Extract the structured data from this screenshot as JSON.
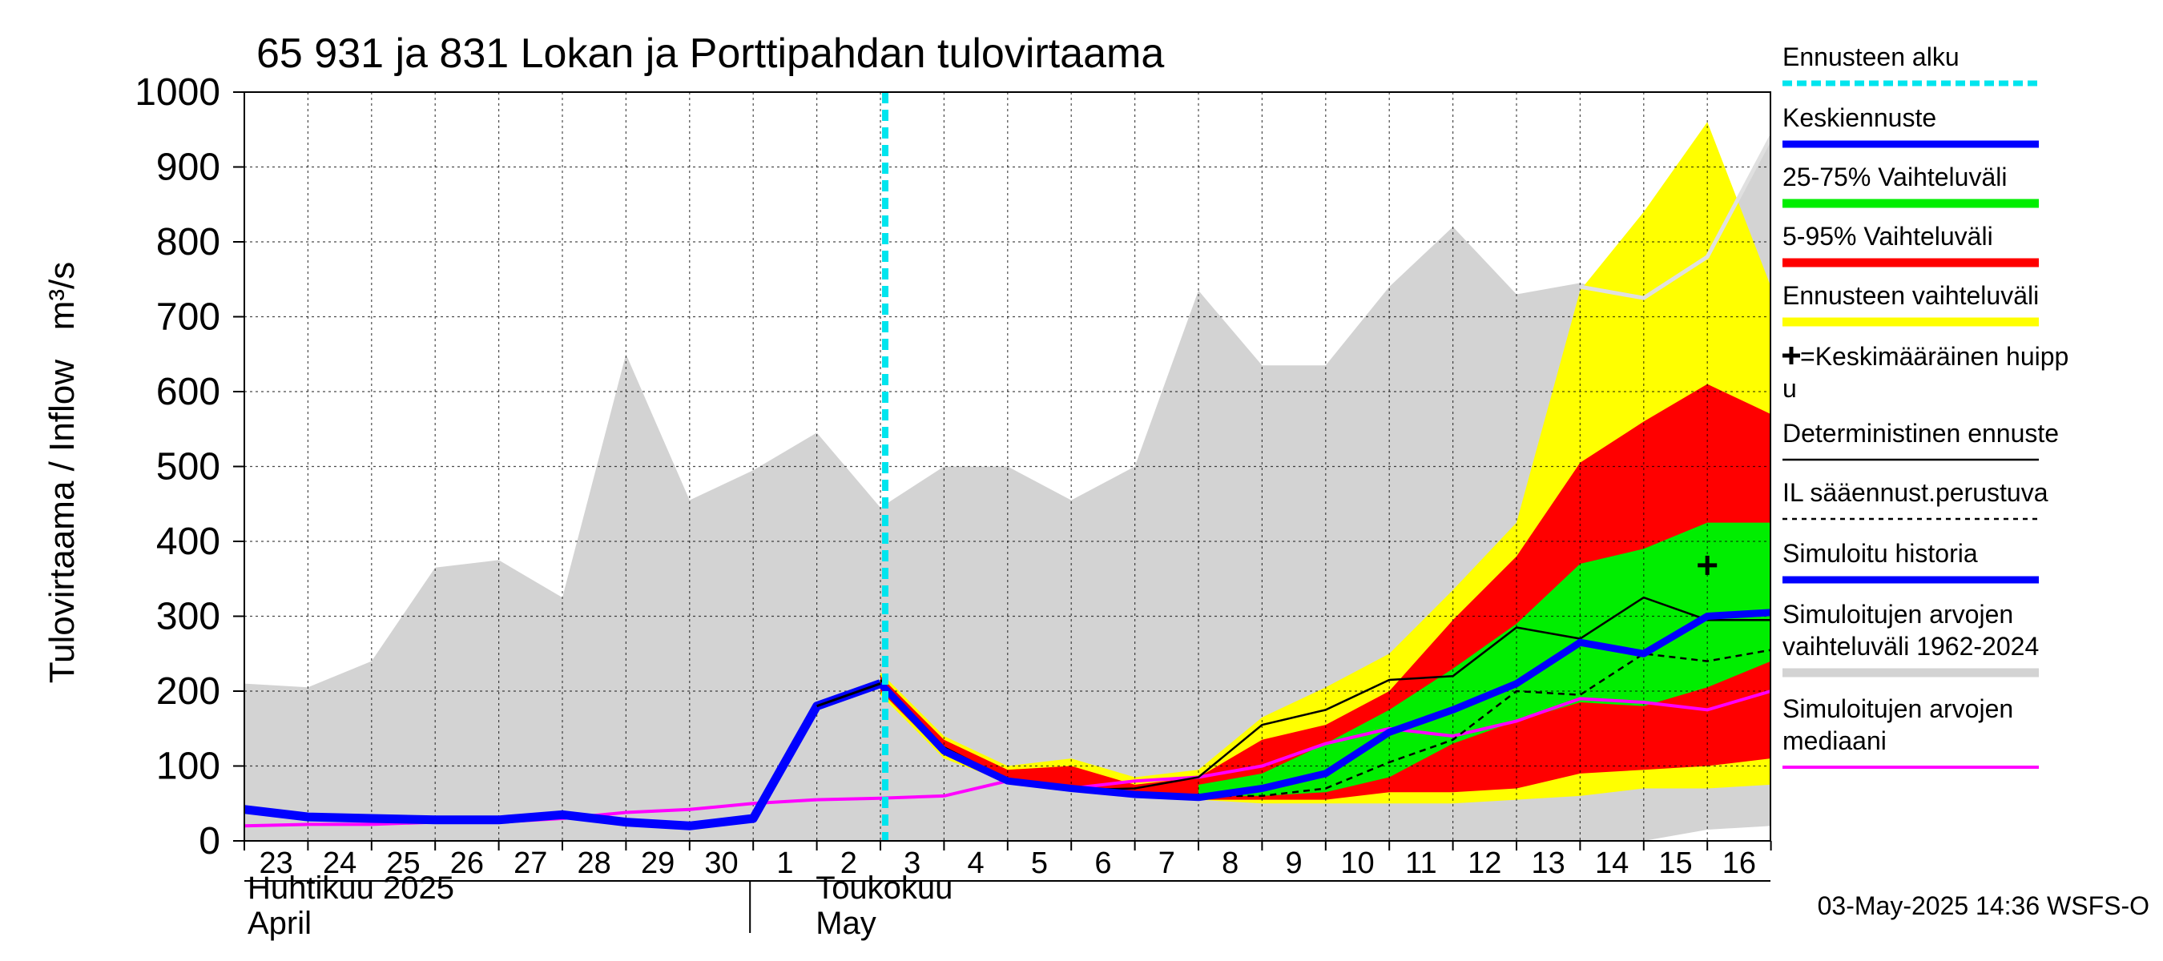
{
  "chart_data": {
    "type": "area",
    "title": "65 931 ja 831 Lokan ja Porttipahdan tulovirtaama",
    "ylabel": "Tulovirtaama / Inflow   m³/s",
    "ylim": [
      0,
      1000
    ],
    "yticks": [
      "0",
      "100",
      "200",
      "300",
      "400",
      "500",
      "600",
      "700",
      "800",
      "900",
      "1000"
    ],
    "x_day_labels": [
      "23",
      "24",
      "25",
      "26",
      "27",
      "28",
      "29",
      "30",
      "1",
      "2",
      "3",
      "4",
      "5",
      "6",
      "7",
      "8",
      "9",
      "10",
      "11",
      "12",
      "13",
      "14",
      "15",
      "16"
    ],
    "month_labels": [
      {
        "line1": "Huhtikuu  2025",
        "line2": "April",
        "at_day": 0
      },
      {
        "line1": "Toukokuu",
        "line2": "May",
        "at_day": 9
      }
    ],
    "forecast_start_day": 10,
    "footer": "03-May-2025 14:36 WSFS-O",
    "colors": {
      "history_range": "#d3d3d3",
      "forecast_range": "#ffff00",
      "p5_95": "#ff0000",
      "p25_75": "#00ee00",
      "mean_forecast": "#0000ff",
      "simulated": "#0000ff",
      "median": "#ff00ff",
      "forecast_start": "#00e5ee",
      "upper_hist": "#e0e0e0"
    },
    "series": {
      "hist_range": {
        "x": [
          0,
          1,
          2,
          3,
          4,
          5,
          6,
          7,
          8,
          9,
          10,
          11,
          12,
          13,
          14,
          15,
          16,
          17,
          18,
          19,
          20,
          21,
          22,
          23,
          24
        ],
        "upper": [
          210,
          205,
          240,
          365,
          375,
          325,
          650,
          455,
          495,
          545,
          445,
          500,
          500,
          455,
          500,
          735,
          635,
          635,
          740,
          820,
          730,
          745,
          725,
          780,
          945
        ],
        "lower": [
          0,
          0,
          0,
          0,
          0,
          0,
          0,
          0,
          0,
          0,
          0,
          0,
          0,
          0,
          0,
          0,
          0,
          0,
          0,
          0,
          0,
          0,
          0,
          15,
          20
        ]
      },
      "hist_upper_line": {
        "x": [
          21,
          22,
          23,
          24
        ],
        "y": [
          740,
          725,
          780,
          940
        ]
      },
      "forecast_range": {
        "x": [
          10,
          11,
          12,
          13,
          14,
          15,
          16,
          17,
          18,
          19,
          20,
          21,
          22,
          23,
          24
        ],
        "upper": [
          225,
          140,
          100,
          110,
          85,
          95,
          165,
          205,
          250,
          335,
          425,
          735,
          840,
          960,
          740
        ],
        "lower": [
          195,
          110,
          78,
          70,
          60,
          55,
          50,
          50,
          50,
          50,
          55,
          60,
          70,
          70,
          75
        ]
      },
      "p5_95": {
        "x": [
          10,
          11,
          12,
          13,
          14,
          15,
          16,
          17,
          18,
          19,
          20,
          21,
          22,
          23,
          24
        ],
        "upper": [
          220,
          135,
          95,
          100,
          75,
          85,
          135,
          155,
          200,
          295,
          380,
          505,
          560,
          610,
          570
        ],
        "lower": [
          200,
          115,
          80,
          70,
          60,
          55,
          55,
          55,
          65,
          65,
          70,
          90,
          95,
          100,
          110
        ]
      },
      "p25_75": {
        "x": [
          15,
          16,
          17,
          18,
          19,
          20,
          21,
          22,
          23,
          24
        ],
        "upper": [
          75,
          90,
          130,
          175,
          230,
          290,
          370,
          390,
          425,
          425
        ],
        "lower": [
          60,
          60,
          65,
          85,
          130,
          160,
          185,
          180,
          205,
          240
        ]
      },
      "simulated_history": {
        "x": [
          0,
          1,
          2,
          3,
          4,
          5,
          6,
          7,
          8,
          9,
          10
        ],
        "y": [
          42,
          32,
          30,
          28,
          28,
          35,
          25,
          20,
          30,
          180,
          210
        ]
      },
      "mean_forecast": {
        "x": [
          10,
          11,
          12,
          13,
          14,
          15,
          16,
          17,
          18,
          19,
          20,
          21,
          22,
          23,
          24
        ],
        "y": [
          210,
          120,
          80,
          70,
          62,
          58,
          70,
          90,
          145,
          175,
          210,
          265,
          250,
          300,
          305
        ]
      },
      "deterministic": {
        "x": [
          10,
          11,
          12,
          13,
          14,
          15,
          16,
          17,
          18,
          19,
          20,
          21,
          22,
          23,
          24
        ],
        "y": [
          215,
          125,
          82,
          68,
          70,
          85,
          155,
          175,
          215,
          220,
          285,
          270,
          325,
          295,
          295
        ]
      },
      "il_forecast": {
        "x": [
          10,
          11,
          12,
          13,
          14,
          15,
          16,
          17,
          18,
          19,
          20,
          21,
          22,
          23,
          24
        ],
        "y": [
          210,
          120,
          80,
          68,
          65,
          60,
          60,
          70,
          105,
          135,
          200,
          195,
          250,
          240,
          255
        ]
      },
      "median": {
        "x": [
          0,
          1,
          2,
          3,
          4,
          5,
          6,
          7,
          8,
          9,
          10,
          11,
          12,
          13,
          14,
          15,
          16,
          17,
          18,
          19,
          20,
          21,
          22,
          23,
          24
        ],
        "y": [
          20,
          22,
          22,
          25,
          25,
          30,
          38,
          42,
          50,
          55,
          57,
          60,
          80,
          70,
          80,
          85,
          100,
          130,
          150,
          140,
          160,
          190,
          185,
          175,
          200
        ]
      },
      "mean_peak": {
        "x": 23,
        "y": 368
      }
    },
    "legend": [
      {
        "label": "Ennusteen alku",
        "style": "dashed-cyan"
      },
      {
        "label": "Keskiennuste",
        "style": "thick-blue"
      },
      {
        "label": "25-75% Vaihteluväli",
        "style": "thick-green"
      },
      {
        "label": "5-95% Vaihteluväli",
        "style": "thick-red"
      },
      {
        "label": "Ennusteen vaihteluväli",
        "style": "thick-yellow"
      },
      {
        "label": "=Keskimääräinen huipp",
        "label2": "u",
        "style": "plus"
      },
      {
        "label": "Deterministinen ennuste",
        "style": "thin-black"
      },
      {
        "label": "IL sääennust.perustuva",
        "style": "dashed-black"
      },
      {
        "label": "Simuloitu historia",
        "style": "thick-blue"
      },
      {
        "label": "Simuloitujen arvojen",
        "label2": "vaihteluväli 1962-2024",
        "style": "thick-gray"
      },
      {
        "label": "Simuloitujen arvojen",
        "label2": "mediaani",
        "style": "magenta"
      }
    ]
  }
}
